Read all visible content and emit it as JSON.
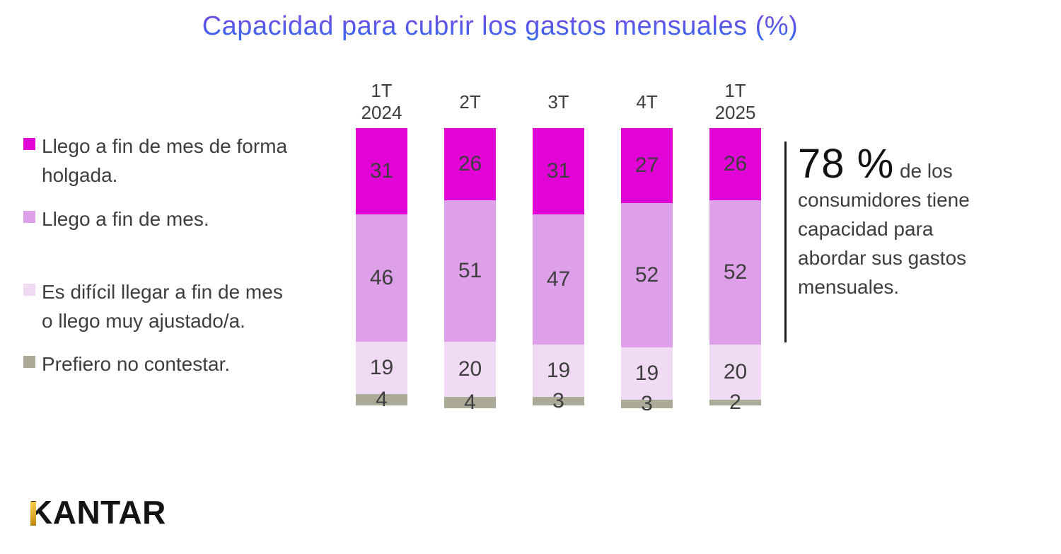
{
  "title": "Capacidad para cubrir los gastos mensuales (%)",
  "legend": [
    {
      "label": "Llego a fin de mes de forma holgada.",
      "color": "#E203D6"
    },
    {
      "label": "Llego a fin de mes.",
      "color": "#DDA0E9"
    },
    {
      "label": "Es difícil llegar a fin de mes o llego muy ajustado/a.",
      "color": "#F0DAF4"
    },
    {
      "label": "Prefiero no contestar.",
      "color": "#ABAA97"
    }
  ],
  "chart_data": {
    "type": "bar",
    "stacked": true,
    "title": "Capacidad para cubrir los gastos mensuales (%)",
    "categories": [
      "1T\n2024",
      "2T",
      "3T",
      "4T",
      "1T\n2025"
    ],
    "series": [
      {
        "name": "Llego a fin de mes de forma holgada.",
        "color": "#E203D6",
        "values": [
          31,
          26,
          31,
          27,
          26
        ]
      },
      {
        "name": "Llego a fin de mes.",
        "color": "#DDA0E9",
        "values": [
          46,
          51,
          47,
          52,
          52
        ]
      },
      {
        "name": "Es difícil llegar a fin de mes o llego muy ajustado/a.",
        "color": "#F0DAF4",
        "values": [
          19,
          20,
          19,
          19,
          20
        ]
      },
      {
        "name": "Prefiero no contestar.",
        "color": "#ABAA97",
        "values": [
          4,
          4,
          3,
          3,
          2
        ]
      }
    ],
    "ylim": [
      0,
      100
    ],
    "grid": false,
    "axes_visible": false,
    "legend_position": "left",
    "value_labels": "inside",
    "value_label_color": "#3E3E3E",
    "title_gradient": [
      "#7C45DF",
      "#2E6CF2"
    ]
  },
  "annotation": {
    "stat_value": "78 %",
    "stat_text": "de los consumidores tiene capacidad para abordar sus gastos mensuales."
  },
  "logo": {
    "text": "KANTAR",
    "accent_color": "#E3AE2E"
  }
}
